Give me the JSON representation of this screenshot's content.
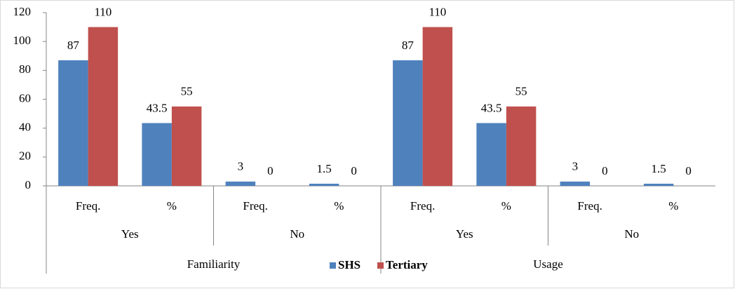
{
  "chart_data": {
    "type": "bar",
    "categories": [
      "Freq.",
      "%",
      "Freq.",
      "%",
      "Freq.",
      "%",
      "Freq.",
      "%"
    ],
    "groups": [
      "Yes",
      "No",
      "Yes",
      "No"
    ],
    "supergroups": [
      "Familiarity",
      "Usage"
    ],
    "series": [
      {
        "name": "SHS",
        "color": "#4f81bd",
        "values": [
          87,
          43.5,
          3,
          1.5,
          87,
          43.5,
          3,
          1.5
        ]
      },
      {
        "name": "Tertiary",
        "color": "#c0504d",
        "values": [
          110,
          55,
          0,
          0,
          110,
          55,
          0,
          0
        ]
      }
    ],
    "ylim": [
      0,
      120
    ],
    "yticks": [
      0,
      20,
      40,
      60,
      80,
      100,
      120
    ],
    "legend": "bottom"
  }
}
